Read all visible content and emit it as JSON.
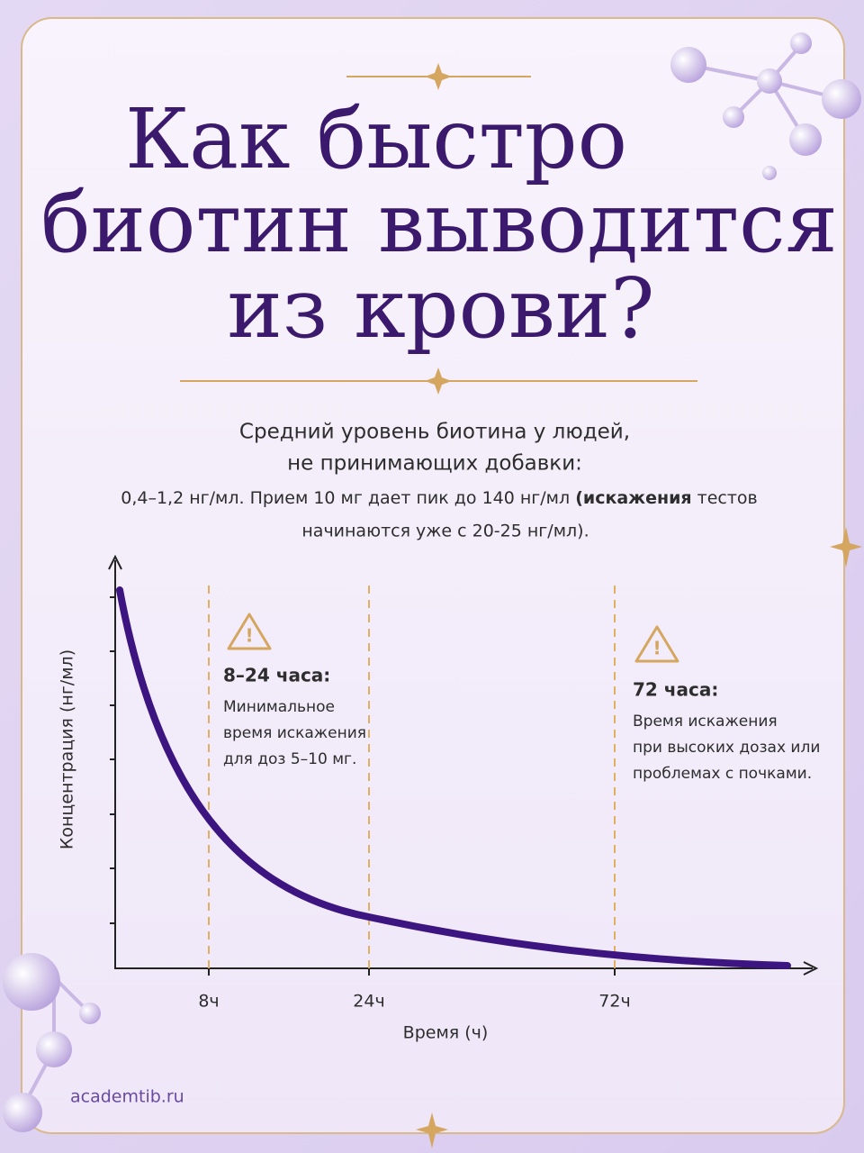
{
  "header": {
    "title_lines": [
      "Как быстро",
      "биотин выводится",
      "из крови?"
    ]
  },
  "intro": {
    "lead_lines": [
      "Средний уровень биотина у людей,",
      "не принимающих добавки:"
    ],
    "detail_line_1": {
      "before": "0,4–1,2 нг/мл. Прием 10 мг дает пик до 140 нг/мл ",
      "bold": "(искажения",
      "after": " тестов"
    },
    "detail_line_2": "начинаются уже с 20-25 нг/мл)."
  },
  "chart": {
    "y_label": "Концентрация (нг/мл)",
    "x_label": "Время (ч)",
    "x_tick_labels": [
      "8ч",
      "24ч",
      "72ч"
    ],
    "annotations": [
      {
        "heading": "8–24 часа:",
        "lines": [
          "Минимальное",
          "время искажения",
          "для доз 5–10 мг."
        ]
      },
      {
        "heading": "72 часа:",
        "lines": [
          "Время искажения",
          "при высоких дозах или",
          "проблемах с почками."
        ]
      }
    ]
  },
  "footer": {
    "site": "academtib.ru"
  }
}
